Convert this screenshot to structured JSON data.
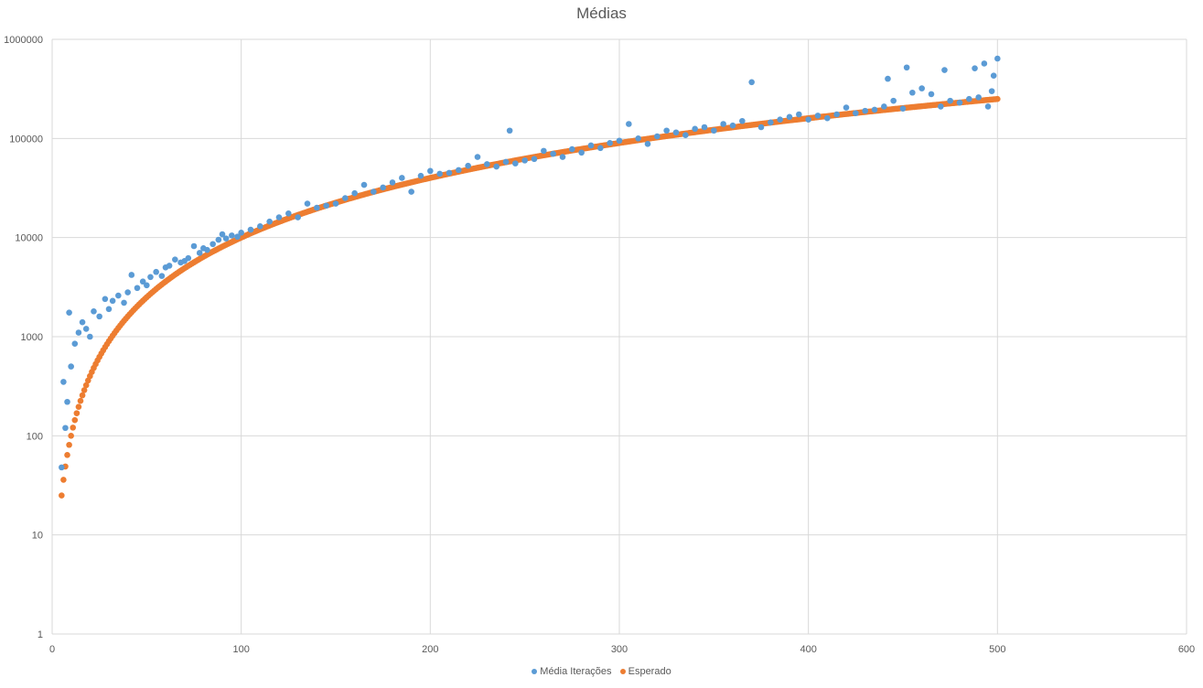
{
  "chart_data": {
    "type": "scatter",
    "title": "Médias",
    "xlabel": "",
    "ylabel": "",
    "xlim": [
      0,
      600
    ],
    "ylim": [
      1,
      1000000
    ],
    "yscale": "log",
    "grid": true,
    "legend_position": "bottom",
    "x_ticks": [
      "0",
      "100",
      "200",
      "300",
      "400",
      "500",
      "600"
    ],
    "y_ticks": [
      "1",
      "10",
      "100",
      "1000",
      "10000",
      "100000",
      "1000000"
    ],
    "series": [
      {
        "name": "Média Iterações",
        "color": "#5B9BD5",
        "x": [
          5,
          6,
          7,
          8,
          9,
          10,
          12,
          14,
          16,
          18,
          20,
          22,
          25,
          28,
          30,
          32,
          35,
          38,
          40,
          42,
          45,
          48,
          50,
          52,
          55,
          58,
          60,
          62,
          65,
          68,
          70,
          72,
          75,
          78,
          80,
          82,
          85,
          88,
          90,
          92,
          95,
          98,
          100,
          105,
          110,
          115,
          120,
          125,
          130,
          135,
          140,
          145,
          150,
          155,
          160,
          165,
          170,
          175,
          180,
          185,
          190,
          195,
          200,
          205,
          210,
          215,
          220,
          225,
          230,
          235,
          240,
          242,
          245,
          250,
          255,
          260,
          265,
          270,
          275,
          280,
          285,
          290,
          295,
          300,
          305,
          310,
          315,
          320,
          325,
          330,
          335,
          340,
          345,
          350,
          355,
          360,
          365,
          370,
          375,
          380,
          385,
          390,
          395,
          400,
          405,
          410,
          415,
          420,
          425,
          430,
          435,
          440,
          442,
          445,
          450,
          452,
          455,
          460,
          465,
          470,
          472,
          475,
          480,
          485,
          488,
          490,
          493,
          495,
          497,
          498,
          500
        ],
        "y": [
          48,
          350,
          120,
          220,
          1750,
          500,
          850,
          1100,
          1400,
          1200,
          1000,
          1800,
          1600,
          2400,
          1900,
          2300,
          2600,
          2200,
          2800,
          4200,
          3100,
          3600,
          3300,
          4000,
          4500,
          4100,
          5000,
          5200,
          6000,
          5600,
          5800,
          6200,
          8200,
          7000,
          7800,
          7500,
          8600,
          9500,
          10800,
          9800,
          10500,
          10200,
          11200,
          12000,
          13000,
          14500,
          16000,
          17500,
          16000,
          22000,
          20000,
          21000,
          22000,
          25000,
          28000,
          34000,
          29000,
          32000,
          36000,
          40000,
          29000,
          42000,
          47000,
          44000,
          45000,
          48000,
          53000,
          65000,
          55000,
          52000,
          58000,
          120000,
          56000,
          60000,
          62000,
          75000,
          70000,
          65000,
          78000,
          72000,
          85000,
          80000,
          90000,
          95000,
          140000,
          100000,
          88000,
          105000,
          120000,
          115000,
          108000,
          125000,
          130000,
          120000,
          140000,
          135000,
          150000,
          370000,
          130000,
          145000,
          155000,
          165000,
          175000,
          155000,
          170000,
          160000,
          175000,
          205000,
          180000,
          190000,
          195000,
          210000,
          400000,
          240000,
          200000,
          520000,
          290000,
          320000,
          280000,
          210000,
          490000,
          240000,
          230000,
          250000,
          510000,
          260000,
          570000,
          210000,
          300000,
          430000,
          640000
        ]
      },
      {
        "name": "Esperado",
        "color": "#ED7D31",
        "formula": "y = x^2",
        "x": [
          5,
          500
        ],
        "y": [
          25,
          250000
        ]
      }
    ]
  }
}
